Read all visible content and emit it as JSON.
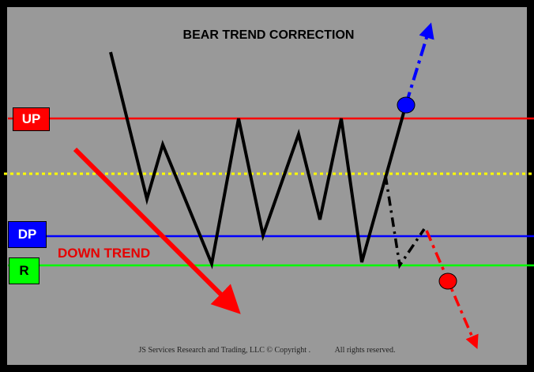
{
  "title": "BEAR TREND CORRECTION",
  "labels": {
    "up": "UP",
    "dp": "DP",
    "r": "R",
    "down_trend": "DOWN TREND"
  },
  "footer": {
    "company": "JS Services Research and Trading, LLC © Copyright .",
    "rights": "All rights reserved."
  },
  "colors": {
    "background": "#999999",
    "frame": "#000000",
    "up_line": "#ff0000",
    "dp_line": "#0000ff",
    "r_line": "#00ff00",
    "midline": "#ffff00",
    "price_path": "#000000",
    "bullish_projection": "#0000ff",
    "bearish_projection": "#ff0000",
    "down_trend_arrow": "#ff0000"
  }
}
